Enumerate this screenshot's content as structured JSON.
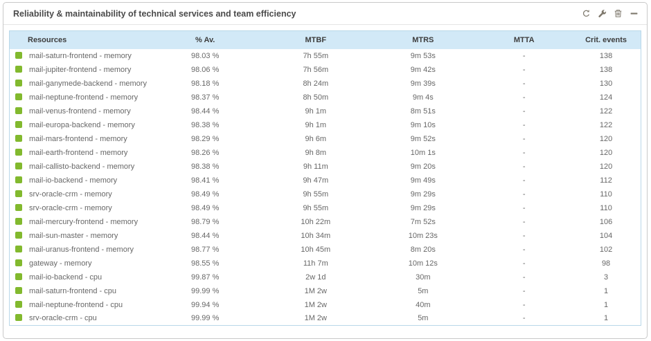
{
  "panel": {
    "title": "Reliability & maintainability of technical services and team efficiency",
    "toolbar": {
      "refresh": "refresh-icon",
      "configure": "wrench-icon",
      "delete": "trash-icon",
      "minimize": "minimize-icon"
    }
  },
  "colors": {
    "status_ok": "#82b92e",
    "header_bg": "#d2e9f7",
    "table_border": "#b9d8e9",
    "row_text": "#676767",
    "title_text": "#4a4a4a",
    "icon_gray": "#7e786c"
  },
  "table": {
    "columns": [
      "Resources",
      "% Av.",
      "MTBF",
      "MTRS",
      "MTTA",
      "Crit. events"
    ],
    "rows": [
      {
        "status": "ok",
        "resource": "mail-saturn-frontend - memory",
        "availability": "98.03 %",
        "mtbf": "7h 55m",
        "mtrs": "9m 53s",
        "mtta": "-",
        "crit_events": "138"
      },
      {
        "status": "ok",
        "resource": "mail-jupiter-frontend - memory",
        "availability": "98.06 %",
        "mtbf": "7h 56m",
        "mtrs": "9m 42s",
        "mtta": "-",
        "crit_events": "138"
      },
      {
        "status": "ok",
        "resource": "mail-ganymede-backend - memory",
        "availability": "98.18 %",
        "mtbf": "8h 24m",
        "mtrs": "9m 39s",
        "mtta": "-",
        "crit_events": "130"
      },
      {
        "status": "ok",
        "resource": "mail-neptune-frontend - memory",
        "availability": "98.37 %",
        "mtbf": "8h 50m",
        "mtrs": "9m 4s",
        "mtta": "-",
        "crit_events": "124"
      },
      {
        "status": "ok",
        "resource": "mail-venus-frontend - memory",
        "availability": "98.44 %",
        "mtbf": "9h 1m",
        "mtrs": "8m 51s",
        "mtta": "-",
        "crit_events": "122"
      },
      {
        "status": "ok",
        "resource": "mail-europa-backend - memory",
        "availability": "98.38 %",
        "mtbf": "9h 1m",
        "mtrs": "9m 10s",
        "mtta": "-",
        "crit_events": "122"
      },
      {
        "status": "ok",
        "resource": "mail-mars-frontend - memory",
        "availability": "98.29 %",
        "mtbf": "9h 6m",
        "mtrs": "9m 52s",
        "mtta": "-",
        "crit_events": "120"
      },
      {
        "status": "ok",
        "resource": "mail-earth-frontend - memory",
        "availability": "98.26 %",
        "mtbf": "9h 8m",
        "mtrs": "10m 1s",
        "mtta": "-",
        "crit_events": "120"
      },
      {
        "status": "ok",
        "resource": "mail-callisto-backend - memory",
        "availability": "98.38 %",
        "mtbf": "9h 11m",
        "mtrs": "9m 20s",
        "mtta": "-",
        "crit_events": "120"
      },
      {
        "status": "ok",
        "resource": "mail-io-backend - memory",
        "availability": "98.41 %",
        "mtbf": "9h 47m",
        "mtrs": "9m 49s",
        "mtta": "-",
        "crit_events": "112"
      },
      {
        "status": "ok",
        "resource": "srv-oracle-crm - memory",
        "availability": "98.49 %",
        "mtbf": "9h 55m",
        "mtrs": "9m 29s",
        "mtta": "-",
        "crit_events": "110"
      },
      {
        "status": "ok",
        "resource": "srv-oracle-crm - memory",
        "availability": "98.49 %",
        "mtbf": "9h 55m",
        "mtrs": "9m 29s",
        "mtta": "-",
        "crit_events": "110"
      },
      {
        "status": "ok",
        "resource": "mail-mercury-frontend - memory",
        "availability": "98.79 %",
        "mtbf": "10h 22m",
        "mtrs": "7m 52s",
        "mtta": "-",
        "crit_events": "106"
      },
      {
        "status": "ok",
        "resource": "mail-sun-master - memory",
        "availability": "98.44 %",
        "mtbf": "10h 34m",
        "mtrs": "10m 23s",
        "mtta": "-",
        "crit_events": "104"
      },
      {
        "status": "ok",
        "resource": "mail-uranus-frontend - memory",
        "availability": "98.77 %",
        "mtbf": "10h 45m",
        "mtrs": "8m 20s",
        "mtta": "-",
        "crit_events": "102"
      },
      {
        "status": "ok",
        "resource": "gateway - memory",
        "availability": "98.55 %",
        "mtbf": "11h 7m",
        "mtrs": "10m 12s",
        "mtta": "-",
        "crit_events": "98"
      },
      {
        "status": "ok",
        "resource": "mail-io-backend - cpu",
        "availability": "99.87 %",
        "mtbf": "2w 1d",
        "mtrs": "30m",
        "mtta": "-",
        "crit_events": "3"
      },
      {
        "status": "ok",
        "resource": "mail-saturn-frontend - cpu",
        "availability": "99.99 %",
        "mtbf": "1M 2w",
        "mtrs": "5m",
        "mtta": "-",
        "crit_events": "1"
      },
      {
        "status": "ok",
        "resource": "mail-neptune-frontend - cpu",
        "availability": "99.94 %",
        "mtbf": "1M 2w",
        "mtrs": "40m",
        "mtta": "-",
        "crit_events": "1"
      },
      {
        "status": "ok",
        "resource": "srv-oracle-crm - cpu",
        "availability": "99.99 %",
        "mtbf": "1M 2w",
        "mtrs": "5m",
        "mtta": "-",
        "crit_events": "1"
      }
    ]
  }
}
